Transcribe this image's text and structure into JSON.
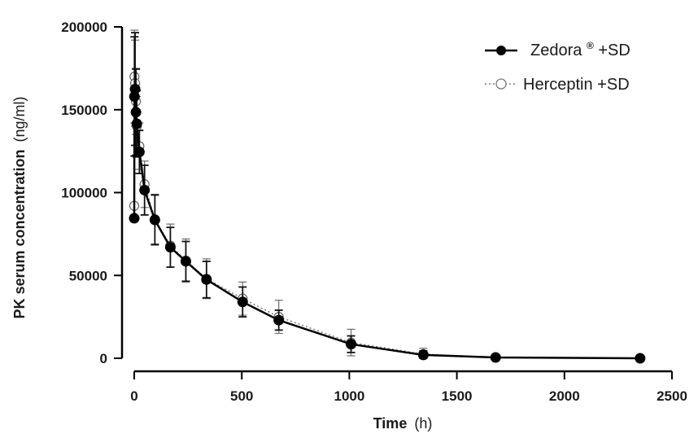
{
  "chart_data": {
    "type": "line",
    "xlabel": {
      "main": "Time",
      "unit": "(h)"
    },
    "ylabel": {
      "main": "PK serum concentration",
      "unit": "(ng/ml)"
    },
    "xlim": [
      0,
      2500
    ],
    "ylim": [
      0,
      200000
    ],
    "xticks": [
      0,
      500,
      1000,
      1500,
      2000,
      2500
    ],
    "yticks": [
      0,
      50000,
      100000,
      150000,
      200000
    ],
    "x_tick_labels": [
      "0",
      "500",
      "1000",
      "1500",
      "2000",
      "2500"
    ],
    "y_tick_labels": [
      "0",
      "50000",
      "100000",
      "150000",
      "200000"
    ],
    "grid": false,
    "legend_position": "top-right",
    "series": [
      {
        "name_main": "Zedora",
        "name_sup": "®",
        "name_rest": " +SD",
        "marker": "filled-circle",
        "line_style": "solid",
        "color": "#000000",
        "x": [
          0,
          1,
          4,
          8,
          12,
          24,
          48,
          96,
          168,
          240,
          336,
          504,
          672,
          1008,
          1344,
          1680,
          2352
        ],
        "y": [
          84500,
          158000,
          162500,
          148500,
          141500,
          124500,
          101500,
          83500,
          67000,
          58500,
          47500,
          34000,
          23000,
          8500,
          2000,
          500,
          0
        ],
        "sd": [
          0,
          36000,
          34000,
          26000,
          20000,
          13000,
          15000,
          15000,
          12000,
          12000,
          11000,
          9000,
          6000,
          5000,
          2500,
          0,
          0
        ]
      },
      {
        "name_main": "Herceptin",
        "name_sup": "",
        "name_rest": " +SD",
        "marker": "open-circle",
        "line_style": "dotted",
        "color": "#7a7a7a",
        "x": [
          0,
          1,
          4,
          8,
          12,
          24,
          48,
          96,
          168,
          240,
          336,
          504,
          672,
          1008,
          1344,
          1680,
          2352
        ],
        "y": [
          92000,
          170000,
          166000,
          155000,
          140000,
          128000,
          105000,
          84000,
          68000,
          59000,
          48000,
          36000,
          25000,
          9500,
          2500,
          600,
          0
        ],
        "sd": [
          0,
          28000,
          26000,
          20000,
          18000,
          14000,
          14000,
          15000,
          13000,
          13000,
          12000,
          10000,
          10000,
          8000,
          3500,
          0,
          0
        ]
      }
    ]
  }
}
